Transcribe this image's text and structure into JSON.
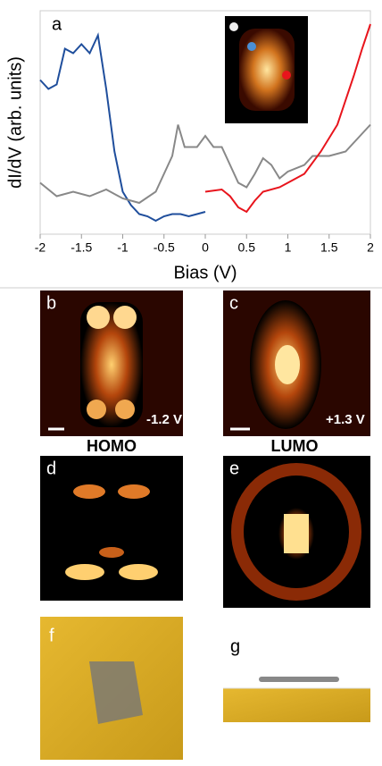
{
  "chart_data": {
    "type": "line",
    "panel_label": "a",
    "y_label": "dI/dV (arb. units)",
    "x_label": "Bias (V)",
    "xlim": [
      -2,
      2
    ],
    "ylim": [
      0,
      1
    ],
    "xticks": [
      -2,
      -1.5,
      -1,
      -0.5,
      0,
      0.5,
      1,
      1.5,
      2
    ],
    "series": [
      {
        "color": "#1f4e9c",
        "x": [
          -2,
          -1.9,
          -1.8,
          -1.7,
          -1.6,
          -1.5,
          -1.4,
          -1.3,
          -1.2,
          -1.1,
          -1,
          -0.9,
          -0.8,
          -0.7,
          -0.6,
          -0.5,
          -0.4,
          -0.3,
          -0.2,
          -0.1,
          0
        ],
        "values": [
          0.69,
          0.65,
          0.67,
          0.83,
          0.81,
          0.85,
          0.81,
          0.89,
          0.65,
          0.37,
          0.19,
          0.13,
          0.09,
          0.08,
          0.06,
          0.08,
          0.09,
          0.09,
          0.08,
          0.09,
          0.1
        ]
      },
      {
        "color": "#888888",
        "x": [
          -2,
          -1.8,
          -1.6,
          -1.4,
          -1.2,
          -1,
          -0.8,
          -0.6,
          -0.5,
          -0.4,
          -0.33,
          -0.25,
          -0.1,
          0,
          0.1,
          0.2,
          0.3,
          0.4,
          0.5,
          0.6,
          0.7,
          0.8,
          0.9,
          1,
          1.2,
          1.3,
          1.5,
          1.7,
          1.8,
          2
        ],
        "values": [
          0.23,
          0.17,
          0.19,
          0.17,
          0.2,
          0.16,
          0.14,
          0.19,
          0.27,
          0.35,
          0.49,
          0.39,
          0.39,
          0.44,
          0.39,
          0.39,
          0.31,
          0.23,
          0.21,
          0.27,
          0.34,
          0.31,
          0.25,
          0.28,
          0.31,
          0.35,
          0.35,
          0.37,
          0.41,
          0.49
        ]
      },
      {
        "color": "#e8141c",
        "x": [
          0,
          0.2,
          0.3,
          0.4,
          0.5,
          0.6,
          0.7,
          0.9,
          1,
          1.2,
          1.4,
          1.6,
          1.8,
          1.9,
          2
        ],
        "values": [
          0.19,
          0.2,
          0.17,
          0.12,
          0.1,
          0.15,
          0.19,
          0.21,
          0.23,
          0.27,
          0.37,
          0.49,
          0.71,
          0.83,
          0.94
        ]
      }
    ]
  },
  "panels": [
    {
      "label": "b",
      "note": "-1.2 V"
    },
    {
      "label": "c",
      "note": "+1.3 V"
    },
    {
      "label": "d"
    },
    {
      "label": "e"
    },
    {
      "label": "f"
    },
    {
      "label": "g"
    }
  ],
  "captions": [
    "HOMO",
    "LUMO"
  ]
}
